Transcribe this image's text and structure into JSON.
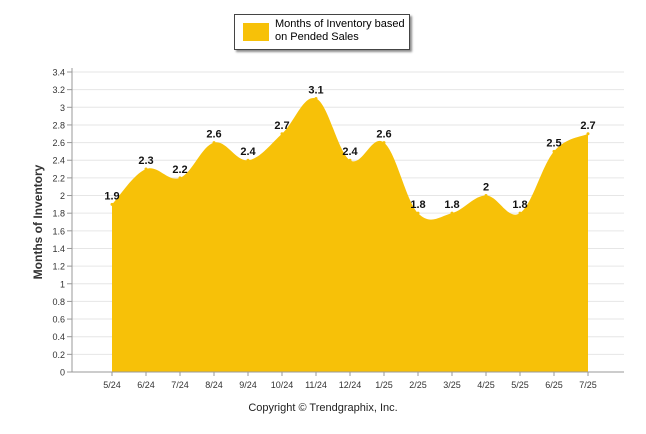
{
  "legend": {
    "label": "Months of Inventory based on Pended Sales"
  },
  "footer": {
    "copyright": "Copyright © Trendgraphix, Inc."
  },
  "colors": {
    "area": "#F7C108",
    "grid": "#e6e6e6",
    "axis": "#999999"
  },
  "chart_data": {
    "type": "area",
    "title": "",
    "xlabel": "",
    "ylabel": "Months of Inventory",
    "ylim": [
      0,
      3.4
    ],
    "ytick_step": 0.2,
    "grid": true,
    "legend_position": "top-center",
    "categories": [
      "5/24",
      "6/24",
      "7/24",
      "8/24",
      "9/24",
      "10/24",
      "11/24",
      "12/24",
      "1/25",
      "2/25",
      "3/25",
      "4/25",
      "5/25",
      "6/25",
      "7/25"
    ],
    "series": [
      {
        "name": "Months of Inventory based on Pended Sales",
        "values": [
          1.9,
          2.3,
          2.2,
          2.6,
          2.4,
          2.7,
          3.1,
          2.4,
          2.6,
          1.8,
          1.8,
          2.0,
          1.8,
          2.5,
          2.7
        ],
        "data_labels": [
          "1.9",
          "2.3",
          "2.2",
          "2.6",
          "2.4",
          "2.7",
          "3.1",
          "2.4",
          "2.6",
          "1.8",
          "1.8",
          "2",
          "1.8",
          "2.5",
          "2.7"
        ]
      }
    ]
  }
}
